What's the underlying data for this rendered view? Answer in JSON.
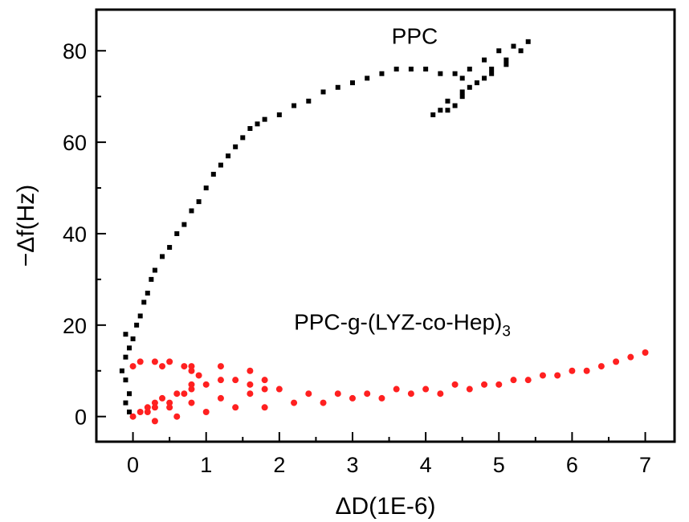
{
  "chart_data": {
    "type": "scatter",
    "xlabel": "ΔD(1E-6)",
    "ylabel": "−Δf(Hz)",
    "xlim": [
      -0.5,
      7.4
    ],
    "ylim": [
      -5.5,
      89
    ],
    "x_ticks": [
      0,
      1,
      2,
      3,
      4,
      5,
      6,
      7
    ],
    "y_ticks": [
      0,
      20,
      40,
      60,
      80
    ],
    "x_tick_labels": [
      "0",
      "1",
      "2",
      "3",
      "4",
      "5",
      "6",
      "7"
    ],
    "y_tick_labels": [
      "0",
      "20",
      "40",
      "60",
      "80"
    ],
    "grid": false,
    "series": [
      {
        "name": "PPC",
        "color": "#000000",
        "marker": "square",
        "points": [
          [
            -0.05,
            1
          ],
          [
            -0.1,
            3
          ],
          [
            -0.05,
            5
          ],
          [
            -0.1,
            8
          ],
          [
            -0.15,
            10
          ],
          [
            -0.1,
            13
          ],
          [
            -0.05,
            15
          ],
          [
            -0.1,
            18
          ],
          [
            0.0,
            17
          ],
          [
            0.05,
            20
          ],
          [
            0.1,
            22
          ],
          [
            0.15,
            25
          ],
          [
            0.2,
            27
          ],
          [
            0.25,
            30
          ],
          [
            0.3,
            32
          ],
          [
            0.4,
            35
          ],
          [
            0.5,
            37
          ],
          [
            0.6,
            40
          ],
          [
            0.7,
            42
          ],
          [
            0.8,
            45
          ],
          [
            0.9,
            47
          ],
          [
            1.0,
            50
          ],
          [
            1.1,
            53
          ],
          [
            1.2,
            55
          ],
          [
            1.3,
            57
          ],
          [
            1.4,
            59
          ],
          [
            1.5,
            61
          ],
          [
            1.6,
            63
          ],
          [
            1.7,
            64
          ],
          [
            1.8,
            65
          ],
          [
            2.0,
            66
          ],
          [
            2.2,
            68
          ],
          [
            2.4,
            69
          ],
          [
            2.6,
            71
          ],
          [
            2.8,
            72
          ],
          [
            3.0,
            73
          ],
          [
            3.2,
            74
          ],
          [
            3.4,
            75
          ],
          [
            3.6,
            76
          ],
          [
            3.8,
            76
          ],
          [
            4.0,
            76
          ],
          [
            4.2,
            75
          ],
          [
            4.4,
            75
          ],
          [
            4.5,
            74
          ],
          [
            4.6,
            76
          ],
          [
            4.8,
            78
          ],
          [
            5.0,
            80
          ],
          [
            5.2,
            81
          ],
          [
            5.4,
            82
          ],
          [
            5.3,
            80
          ],
          [
            5.1,
            78
          ],
          [
            4.9,
            76
          ],
          [
            4.8,
            74
          ],
          [
            4.6,
            72
          ],
          [
            4.5,
            70
          ],
          [
            4.4,
            68
          ],
          [
            4.3,
            67
          ],
          [
            4.2,
            67
          ],
          [
            4.1,
            66
          ],
          [
            4.3,
            69
          ],
          [
            4.5,
            71
          ],
          [
            4.7,
            73
          ],
          [
            4.9,
            75
          ],
          [
            5.1,
            77
          ]
        ]
      },
      {
        "name": "PPC-g-(LYZ-co-Hep)₃",
        "color": "#ff2020",
        "marker": "circle",
        "points": [
          [
            0.0,
            0
          ],
          [
            0.1,
            1
          ],
          [
            0.2,
            2
          ],
          [
            0.3,
            3
          ],
          [
            0.4,
            4
          ],
          [
            0.6,
            5
          ],
          [
            0.8,
            6
          ],
          [
            1.0,
            7
          ],
          [
            1.2,
            8
          ],
          [
            1.4,
            8
          ],
          [
            1.6,
            7
          ],
          [
            1.8,
            6
          ],
          [
            1.6,
            5
          ],
          [
            1.2,
            4
          ],
          [
            0.8,
            3
          ],
          [
            0.5,
            2
          ],
          [
            0.3,
            2
          ],
          [
            0.5,
            3
          ],
          [
            0.7,
            5
          ],
          [
            0.8,
            7
          ],
          [
            0.9,
            9
          ],
          [
            0.8,
            10
          ],
          [
            0.7,
            11
          ],
          [
            0.5,
            12
          ],
          [
            0.3,
            12
          ],
          [
            0.1,
            12
          ],
          [
            0.0,
            11
          ],
          [
            0.4,
            11
          ],
          [
            0.8,
            11
          ],
          [
            1.2,
            11
          ],
          [
            1.6,
            10
          ],
          [
            1.8,
            8
          ],
          [
            2.0,
            6
          ],
          [
            2.4,
            5
          ],
          [
            2.8,
            5
          ],
          [
            3.2,
            5
          ],
          [
            3.6,
            6
          ],
          [
            4.0,
            6
          ],
          [
            4.4,
            7
          ],
          [
            4.8,
            7
          ],
          [
            5.2,
            8
          ],
          [
            5.6,
            9
          ],
          [
            6.0,
            10
          ],
          [
            6.4,
            11
          ],
          [
            6.8,
            13
          ],
          [
            7.0,
            14
          ],
          [
            6.6,
            12
          ],
          [
            6.2,
            10
          ],
          [
            5.8,
            9
          ],
          [
            5.4,
            8
          ],
          [
            5.0,
            7
          ],
          [
            4.6,
            6
          ],
          [
            4.2,
            5
          ],
          [
            3.8,
            5
          ],
          [
            3.4,
            4
          ],
          [
            3.0,
            4
          ],
          [
            2.6,
            3
          ],
          [
            2.2,
            3
          ],
          [
            1.8,
            2
          ],
          [
            1.4,
            2
          ],
          [
            1.0,
            1
          ],
          [
            0.6,
            0
          ],
          [
            0.3,
            -1
          ],
          [
            0.2,
            1
          ]
        ]
      }
    ],
    "annotations": [
      {
        "text": "PPC",
        "x": 3.85,
        "y": 81.5
      },
      {
        "text": "PPC-g-(LYZ-co-Hep)",
        "subscript": "3",
        "x": 2.2,
        "y": 19
      }
    ]
  }
}
